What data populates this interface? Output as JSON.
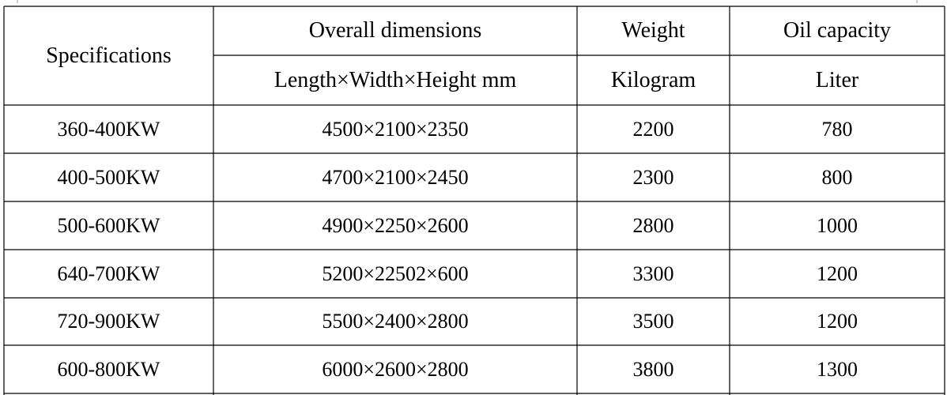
{
  "table": {
    "header": {
      "specifications": "Specifications",
      "overall_dimensions": "Overall dimensions",
      "weight": "Weight",
      "oil_capacity": "Oil capacity"
    },
    "units": [
      "Length×Width×Height mm",
      "Kilogram",
      "Liter"
    ],
    "rows": [
      [
        "360-400KW",
        "4500×2100×2350",
        2200,
        780
      ],
      [
        "400-500KW",
        "4700×2100×2450",
        2300,
        800
      ],
      [
        "500-600KW",
        "4900×2250×2600",
        2800,
        1000
      ],
      [
        "640-700KW",
        "5200×22502×600",
        3300,
        1200
      ],
      [
        "720-900KW",
        "5500×2400×2800",
        3500,
        1200
      ],
      [
        "600-800KW",
        "6000×2600×2800",
        3800,
        1300
      ]
    ]
  }
}
